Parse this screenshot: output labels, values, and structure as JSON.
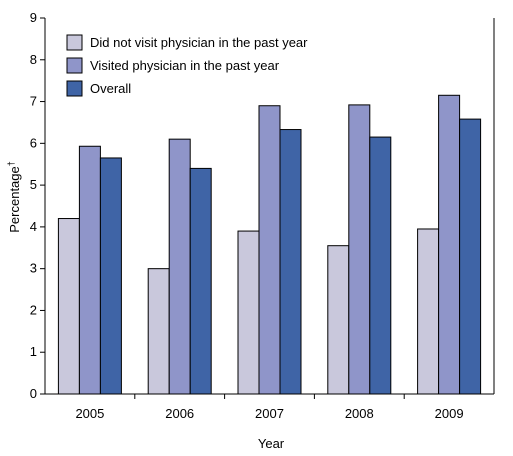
{
  "chart_data": {
    "type": "bar",
    "categories": [
      "2005",
      "2006",
      "2007",
      "2008",
      "2009"
    ],
    "series": [
      {
        "name": "Did not visit physician in the past year",
        "color": "#c9c8dc",
        "values": [
          4.2,
          3.0,
          3.9,
          3.55,
          3.95
        ]
      },
      {
        "name": "Visited physician in the past year",
        "color": "#8f95c9",
        "values": [
          5.93,
          6.1,
          6.9,
          6.92,
          7.15
        ]
      },
      {
        "name": "Overall",
        "color": "#3f64a6",
        "values": [
          5.65,
          5.4,
          6.33,
          6.15,
          6.58
        ]
      }
    ],
    "xlabel": "Year",
    "ylabel": "Percentage",
    "ylabel_marker": "†",
    "ylim": [
      0,
      9
    ],
    "yticks": [
      "0",
      "1",
      "2",
      "3",
      "4",
      "5",
      "6",
      "7",
      "8",
      "9"
    ],
    "legend_position": "top-left",
    "grid": false
  }
}
